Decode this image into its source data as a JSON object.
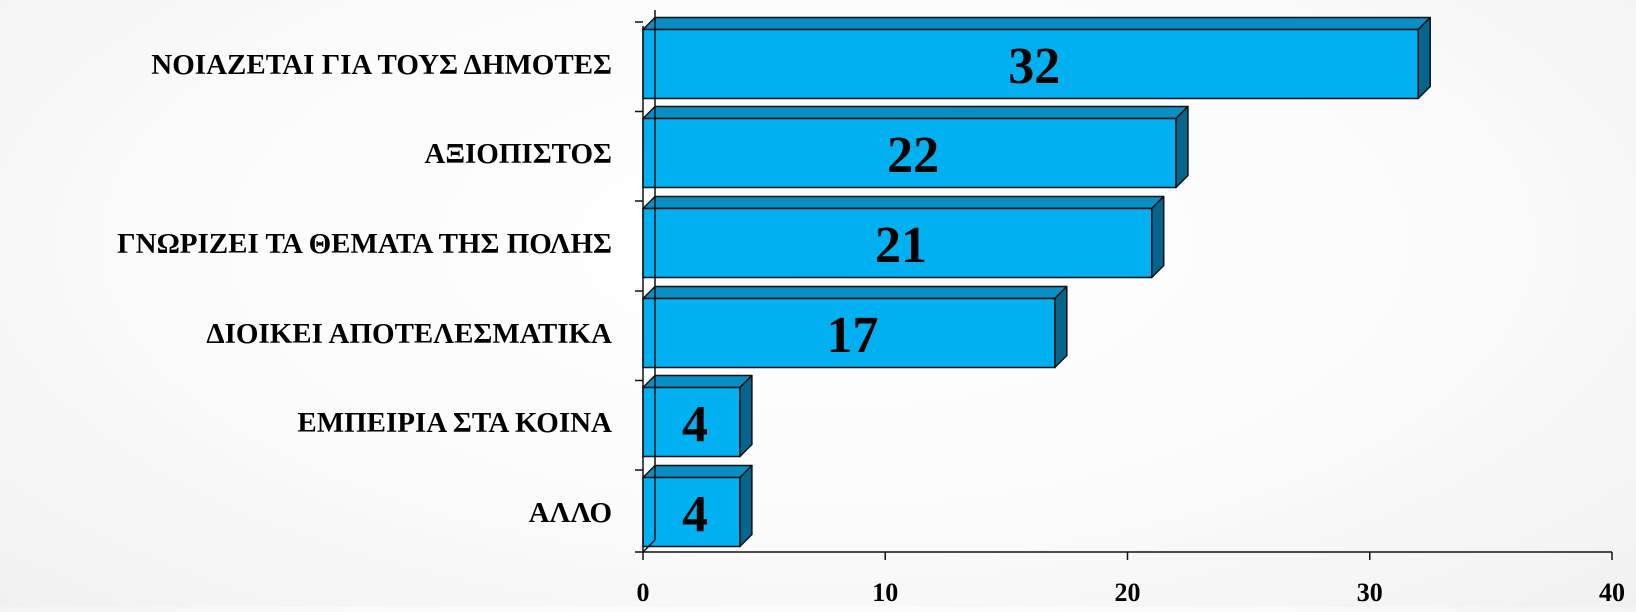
{
  "chart_data": {
    "type": "bar",
    "orientation": "horizontal",
    "style": "3d",
    "categories": [
      "ΝΟΙΑΖΕΤΑΙ ΓΙΑ ΤΟΥΣ ΔΗΜΟΤΕΣ",
      "ΑΞΙΟΠΙΣΤΟΣ",
      "ΓΝΩΡΙΖΕΙ ΤΑ ΘΕΜΑΤΑ ΤΗΣ ΠΟΛΗΣ",
      "ΔΙΟΙΚΕΙ ΑΠΟΤΕΛΕΣΜΑΤΙΚΑ",
      "ΕΜΠΕΙΡΙΑ ΣΤΑ ΚΟΙΝΑ",
      "ΑΛΛΟ"
    ],
    "values": [
      32,
      22,
      21,
      17,
      4,
      4
    ],
    "data_labels": [
      "32",
      "22",
      "21",
      "17",
      "4",
      "4"
    ],
    "xlim": [
      0,
      40
    ],
    "xticks": [
      0,
      10,
      20,
      30,
      40
    ],
    "xtick_labels": [
      "0",
      "10",
      "20",
      "30",
      "40"
    ],
    "title": "",
    "xlabel": "",
    "ylabel": "",
    "grid": false,
    "legend": "none",
    "colors": {
      "bar_front": "#00b0f0",
      "bar_top": "#0a8fc4",
      "bar_side": "#05658c",
      "outline": "#111111",
      "text": "#000000"
    }
  }
}
